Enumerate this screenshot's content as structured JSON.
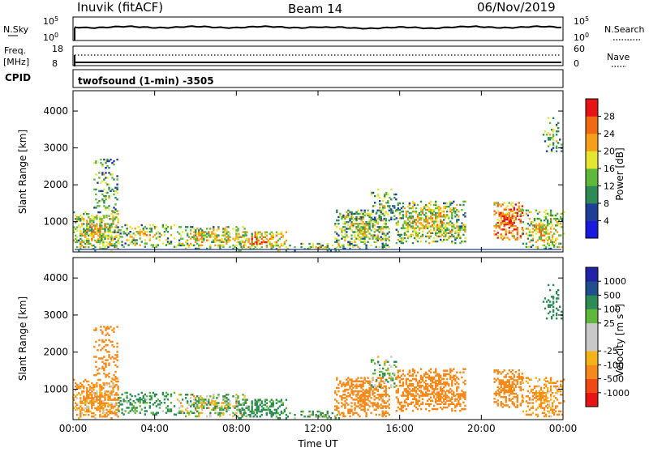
{
  "header": {
    "station": "Inuvik (fitACF)",
    "beam": "Beam 14",
    "date": "06/Nov/2019"
  },
  "panels": {
    "nsky": {
      "label": "N.Sky",
      "left_top": "10^5",
      "left_bottom": "10^0",
      "right_top": "10^5",
      "right_bottom": "10^0",
      "right_label": "N.Search"
    },
    "freq": {
      "label": "Freq.",
      "unit": "[MHz]",
      "left_top": "18",
      "left_bottom": "8",
      "right_top": "60",
      "right_bottom": "0",
      "right_label": "Nave"
    },
    "cpid": {
      "label": "CPID",
      "text": "twofsound (1-min) -3505"
    }
  },
  "colors": {
    "power": [
      "#1a1adc",
      "#1f3f96",
      "#2e8b57",
      "#5fb83a",
      "#e6e632",
      "#f5a01a",
      "#f06a14",
      "#e61414"
    ],
    "velocity": [
      "#e61414",
      "#f04a14",
      "#f58a1a",
      "#f5b31a",
      "#c8c8c8",
      "#c8c8c8",
      "#5fb83a",
      "#2e8b57",
      "#1f4f8c",
      "#2222a8"
    ]
  },
  "chart_data": [
    {
      "type": "heatmap",
      "title": "Power",
      "ylabel": "Slant Range [km]",
      "colorbar_label": "Power [dB]",
      "colorbar_ticks": [
        "4",
        "8",
        "12",
        "16",
        "20",
        "24",
        "28"
      ],
      "x_range": [
        0,
        24
      ],
      "y_range": [
        180,
        4550
      ],
      "y_ticks": [
        "1000",
        "2000",
        "3000",
        "4000"
      ],
      "x_ticks": [
        "00:00",
        "04:00",
        "08:00",
        "12:00",
        "16:00",
        "20:00",
        "00:00"
      ],
      "xlabel": "",
      "blobs": [
        {
          "t0": 0.0,
          "t1": 2.2,
          "r0": 200,
          "r1": 1250,
          "d": 0.55,
          "p": 14,
          "v": -150
        },
        {
          "t0": 1.0,
          "t1": 2.2,
          "r0": 1000,
          "r1": 2700,
          "d": 0.22,
          "p": 10,
          "v": -250
        },
        {
          "t0": 2.2,
          "t1": 5.0,
          "r0": 300,
          "r1": 900,
          "d": 0.35,
          "p": 12,
          "v": 150
        },
        {
          "t0": 5.0,
          "t1": 8.5,
          "r0": 250,
          "r1": 850,
          "d": 0.4,
          "p": 14,
          "v": 30
        },
        {
          "t0": 8.0,
          "t1": 10.5,
          "r0": 200,
          "r1": 700,
          "d": 0.45,
          "p": 18,
          "v": 200
        },
        {
          "t0": 10.5,
          "t1": 13.0,
          "r0": 200,
          "r1": 400,
          "d": 0.3,
          "p": 12,
          "v": 100
        },
        {
          "t0": 12.8,
          "t1": 15.5,
          "r0": 250,
          "r1": 1300,
          "d": 0.45,
          "p": 12,
          "v": -250
        },
        {
          "t0": 14.5,
          "t1": 15.8,
          "r0": 1000,
          "r1": 1900,
          "d": 0.22,
          "p": 10,
          "v": 100
        },
        {
          "t0": 15.8,
          "t1": 19.2,
          "r0": 400,
          "r1": 1550,
          "d": 0.5,
          "p": 14,
          "v": -300
        },
        {
          "t0": 20.6,
          "t1": 22.0,
          "r0": 500,
          "r1": 1500,
          "d": 0.5,
          "p": 22,
          "v": -350
        },
        {
          "t0": 22.0,
          "t1": 24.0,
          "r0": 250,
          "r1": 1300,
          "d": 0.4,
          "p": 14,
          "v": -150
        },
        {
          "t0": 23.0,
          "t1": 23.9,
          "r0": 2800,
          "r1": 3800,
          "d": 0.2,
          "p": 10,
          "v": 300
        }
      ]
    },
    {
      "type": "heatmap",
      "title": "Velocity",
      "ylabel": "Slant Range [km]",
      "colorbar_label": "Velocity [m s-1]",
      "colorbar_ticks": [
        "-1000",
        "-500",
        "-100",
        "-25",
        "25",
        "100",
        "500",
        "1000"
      ],
      "x_range": [
        0,
        24
      ],
      "y_range": [
        180,
        4550
      ],
      "y_ticks": [
        "1000",
        "2000",
        "3000",
        "4000"
      ],
      "x_ticks": [
        "00:00",
        "04:00",
        "08:00",
        "12:00",
        "16:00",
        "20:00",
        "00:00"
      ],
      "xlabel": "Time UT"
    }
  ]
}
